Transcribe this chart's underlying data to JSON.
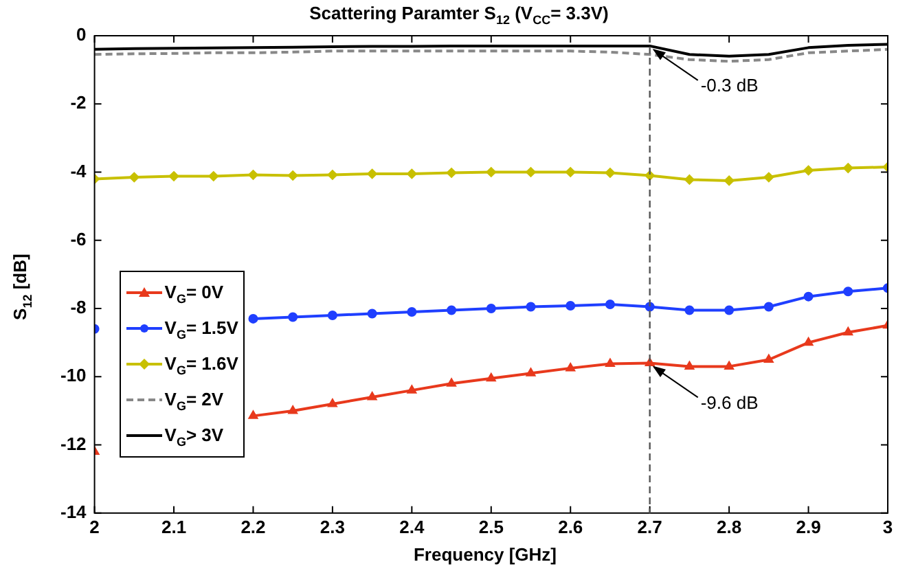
{
  "chart_data": {
    "type": "line",
    "title": "Scattering Paramter S$_{12}$  (V$_{CC}$= 3.3V)",
    "xlabel": "Frequency [GHz]",
    "ylabel": "S$_{12}$ [dB]",
    "x": [
      2.0,
      2.05,
      2.1,
      2.15,
      2.2,
      2.25,
      2.3,
      2.35,
      2.4,
      2.45,
      2.5,
      2.55,
      2.6,
      2.65,
      2.7,
      2.75,
      2.8,
      2.85,
      2.9,
      2.95,
      3.0
    ],
    "series": [
      {
        "name": "V$_{G}$= 0V",
        "color": "#e8391c",
        "marker": "triangle",
        "values": [
          -12.2,
          null,
          null,
          null,
          -11.15,
          -11.0,
          -10.8,
          -10.6,
          -10.4,
          -10.2,
          -10.05,
          -9.9,
          -9.75,
          -9.62,
          -9.6,
          -9.7,
          -9.7,
          -9.5,
          -9.0,
          -8.7,
          -8.5
        ]
      },
      {
        "name": "V$_{G}$= 1.5V",
        "color": "#1f3fff",
        "marker": "circle",
        "values": [
          -8.6,
          null,
          null,
          null,
          -8.3,
          -8.25,
          -8.2,
          -8.15,
          -8.1,
          -8.05,
          -8.0,
          -7.95,
          -7.92,
          -7.88,
          -7.95,
          -8.05,
          -8.05,
          -7.95,
          -7.65,
          -7.5,
          -7.4
        ]
      },
      {
        "name": "V$_{G}$= 1.6V",
        "color": "#c8c000",
        "marker": "diamond",
        "values": [
          -4.2,
          -4.15,
          -4.12,
          -4.12,
          -4.08,
          -4.1,
          -4.08,
          -4.05,
          -4.05,
          -4.02,
          -4.0,
          -4.0,
          -4.0,
          -4.02,
          -4.1,
          -4.22,
          -4.25,
          -4.15,
          -3.95,
          -3.88,
          -3.85
        ]
      },
      {
        "name": "V$_{G}$= 2V",
        "color": "#888888",
        "marker": "none",
        "line_style": "dashed",
        "values": [
          -0.55,
          -0.53,
          -0.52,
          -0.5,
          -0.5,
          -0.48,
          -0.45,
          -0.45,
          -0.45,
          -0.45,
          -0.45,
          -0.45,
          -0.45,
          -0.48,
          -0.55,
          -0.7,
          -0.75,
          -0.7,
          -0.5,
          -0.45,
          -0.4
        ]
      },
      {
        "name": "V$_{G}$> 3V",
        "color": "#000000",
        "marker": "none",
        "line_style": "solid",
        "values": [
          -0.4,
          -0.38,
          -0.37,
          -0.36,
          -0.35,
          -0.34,
          -0.32,
          -0.31,
          -0.31,
          -0.3,
          -0.3,
          -0.3,
          -0.3,
          -0.3,
          -0.3,
          -0.55,
          -0.6,
          -0.55,
          -0.35,
          -0.28,
          -0.25
        ]
      }
    ],
    "xlim": [
      2,
      3
    ],
    "xticks": [
      2,
      2.1,
      2.2,
      2.3,
      2.4,
      2.5,
      2.6,
      2.7,
      2.8,
      2.9,
      3
    ],
    "ylim": [
      -14,
      0
    ],
    "yticks": [
      -14,
      -12,
      -10,
      -8,
      -6,
      -4,
      -2,
      0
    ],
    "grid": false,
    "legend": "bottom left",
    "ref_lines": [
      {
        "axis": "x",
        "value": 2.7,
        "color": "#555555",
        "line_style": "dashed"
      }
    ],
    "annotations": [
      {
        "text": "-0.3 dB",
        "x": 2.7,
        "y": -0.3
      },
      {
        "text": "-9.6 dB",
        "x": 2.7,
        "y": -9.6
      }
    ]
  }
}
